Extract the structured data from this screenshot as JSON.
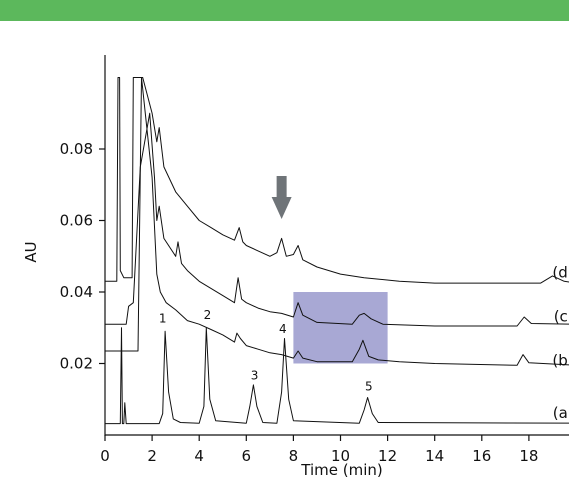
{
  "banner": {
    "color": "#5cb85c"
  },
  "colors": {
    "trace": "#111111",
    "highlight": "#9999cc",
    "arrow": "#6f7478"
  },
  "chart_data": {
    "type": "line",
    "xlabel": "Time (min)",
    "ylabel": "AU",
    "xlim": [
      0,
      20
    ],
    "ylim": [
      0,
      0.1
    ],
    "x_ticks": [
      0,
      2,
      4,
      6,
      8,
      10,
      12,
      14,
      16,
      18
    ],
    "y_ticks": [
      0.02,
      0.04,
      0.06,
      0.08
    ],
    "y_tick_labels": [
      "0.02",
      "0.04",
      "0.06",
      "0.08"
    ],
    "highlight_box": {
      "x": [
        8,
        12
      ],
      "y": [
        0.02,
        0.04
      ]
    },
    "arrow_at_min": 7.5,
    "series": [
      {
        "name": "(a)",
        "label_pos": [
          19.9,
          0.0048
        ],
        "points": [
          [
            0,
            0.0032
          ],
          [
            0.65,
            0.0032
          ],
          [
            0.7,
            0.03
          ],
          [
            0.74,
            0.0032
          ],
          [
            0.8,
            0.0032
          ],
          [
            0.84,
            0.009
          ],
          [
            0.9,
            0.0032
          ],
          [
            2.3,
            0.0032
          ],
          [
            2.45,
            0.006
          ],
          [
            2.55,
            0.029
          ],
          [
            2.7,
            0.012
          ],
          [
            2.9,
            0.0045
          ],
          [
            3.2,
            0.0035
          ],
          [
            4.0,
            0.0033
          ],
          [
            4.2,
            0.008
          ],
          [
            4.3,
            0.03
          ],
          [
            4.45,
            0.01
          ],
          [
            4.7,
            0.004
          ],
          [
            6.0,
            0.0033
          ],
          [
            6.15,
            0.008
          ],
          [
            6.3,
            0.014
          ],
          [
            6.45,
            0.008
          ],
          [
            6.7,
            0.0035
          ],
          [
            7.3,
            0.0033
          ],
          [
            7.5,
            0.012
          ],
          [
            7.62,
            0.027
          ],
          [
            7.8,
            0.01
          ],
          [
            8.0,
            0.004
          ],
          [
            10.8,
            0.0033
          ],
          [
            11.0,
            0.007
          ],
          [
            11.15,
            0.0105
          ],
          [
            11.35,
            0.006
          ],
          [
            11.6,
            0.0035
          ],
          [
            20,
            0.0033
          ]
        ]
      },
      {
        "name": "(b)",
        "label_pos": [
          19.9,
          0.0195
        ],
        "points": [
          [
            0,
            0.0235
          ],
          [
            1.4,
            0.0235
          ],
          [
            1.55,
            0.1
          ],
          [
            2.0,
            0.072
          ],
          [
            2.2,
            0.045
          ],
          [
            2.35,
            0.04
          ],
          [
            2.6,
            0.037
          ],
          [
            3.0,
            0.035
          ],
          [
            3.5,
            0.032
          ],
          [
            4.0,
            0.031
          ],
          [
            4.5,
            0.0295
          ],
          [
            5.0,
            0.028
          ],
          [
            5.5,
            0.026
          ],
          [
            5.6,
            0.0285
          ],
          [
            5.75,
            0.027
          ],
          [
            6.0,
            0.025
          ],
          [
            6.5,
            0.024
          ],
          [
            7.0,
            0.023
          ],
          [
            7.5,
            0.0225
          ],
          [
            8.0,
            0.0215
          ],
          [
            8.2,
            0.0235
          ],
          [
            8.4,
            0.0215
          ],
          [
            9.0,
            0.0205
          ],
          [
            10.5,
            0.0205
          ],
          [
            10.8,
            0.024
          ],
          [
            10.95,
            0.0265
          ],
          [
            11.2,
            0.022
          ],
          [
            11.6,
            0.021
          ],
          [
            12.5,
            0.0205
          ],
          [
            14,
            0.02
          ],
          [
            17.5,
            0.0195
          ],
          [
            17.75,
            0.0225
          ],
          [
            18.0,
            0.0202
          ],
          [
            20,
            0.0195
          ]
        ]
      },
      {
        "name": "(c)",
        "label_pos": [
          19.9,
          0.0318
        ],
        "points": [
          [
            0,
            0.031
          ],
          [
            0.9,
            0.031
          ],
          [
            1.0,
            0.036
          ],
          [
            1.2,
            0.037
          ],
          [
            1.5,
            0.075
          ],
          [
            1.9,
            0.09
          ],
          [
            2.1,
            0.072
          ],
          [
            2.2,
            0.06
          ],
          [
            2.3,
            0.064
          ],
          [
            2.5,
            0.055
          ],
          [
            3.0,
            0.05
          ],
          [
            3.1,
            0.054
          ],
          [
            3.25,
            0.048
          ],
          [
            3.5,
            0.046
          ],
          [
            4.0,
            0.043
          ],
          [
            4.5,
            0.041
          ],
          [
            5.0,
            0.039
          ],
          [
            5.5,
            0.037
          ],
          [
            5.65,
            0.044
          ],
          [
            5.8,
            0.038
          ],
          [
            6.0,
            0.037
          ],
          [
            6.5,
            0.0355
          ],
          [
            7.0,
            0.0345
          ],
          [
            7.5,
            0.034
          ],
          [
            8.0,
            0.033
          ],
          [
            8.2,
            0.037
          ],
          [
            8.4,
            0.0335
          ],
          [
            9.0,
            0.0315
          ],
          [
            10.5,
            0.031
          ],
          [
            10.8,
            0.0335
          ],
          [
            11.0,
            0.034
          ],
          [
            11.3,
            0.0325
          ],
          [
            11.8,
            0.031
          ],
          [
            14,
            0.0305
          ],
          [
            17.5,
            0.0305
          ],
          [
            17.8,
            0.033
          ],
          [
            18.1,
            0.0312
          ],
          [
            20,
            0.031
          ]
        ]
      },
      {
        "name": "(d)",
        "label_pos": [
          19.9,
          0.044
        ],
        "points": [
          [
            0,
            0.043
          ],
          [
            0.5,
            0.043
          ],
          [
            0.55,
            0.1
          ],
          [
            0.62,
            0.1
          ],
          [
            0.65,
            0.046
          ],
          [
            0.8,
            0.044
          ],
          [
            1.0,
            0.044
          ],
          [
            1.15,
            0.044
          ],
          [
            1.2,
            0.1
          ],
          [
            1.6,
            0.1
          ],
          [
            1.8,
            0.095
          ],
          [
            2.0,
            0.09
          ],
          [
            2.2,
            0.082
          ],
          [
            2.3,
            0.086
          ],
          [
            2.5,
            0.075
          ],
          [
            3.0,
            0.068
          ],
          [
            3.5,
            0.064
          ],
          [
            4.0,
            0.06
          ],
          [
            4.5,
            0.058
          ],
          [
            5.0,
            0.056
          ],
          [
            5.5,
            0.0545
          ],
          [
            5.7,
            0.058
          ],
          [
            5.85,
            0.054
          ],
          [
            6.0,
            0.053
          ],
          [
            6.5,
            0.0515
          ],
          [
            7.0,
            0.05
          ],
          [
            7.3,
            0.051
          ],
          [
            7.5,
            0.055
          ],
          [
            7.7,
            0.05
          ],
          [
            8.0,
            0.0505
          ],
          [
            8.2,
            0.053
          ],
          [
            8.4,
            0.049
          ],
          [
            9.0,
            0.047
          ],
          [
            10.0,
            0.045
          ],
          [
            11.0,
            0.044
          ],
          [
            12.5,
            0.043
          ],
          [
            14,
            0.0425
          ],
          [
            18.5,
            0.0425
          ],
          [
            19.0,
            0.0445
          ],
          [
            19.5,
            0.043
          ],
          [
            20,
            0.0425
          ]
        ]
      }
    ],
    "peak_labels": [
      {
        "text": "1",
        "x": 2.45,
        "y": 0.0315
      },
      {
        "text": "2",
        "x": 4.35,
        "y": 0.0325
      },
      {
        "text": "3",
        "x": 6.35,
        "y": 0.0155
      },
      {
        "text": "4",
        "x": 7.55,
        "y": 0.0285
      },
      {
        "text": "5",
        "x": 11.2,
        "y": 0.0125
      }
    ]
  }
}
